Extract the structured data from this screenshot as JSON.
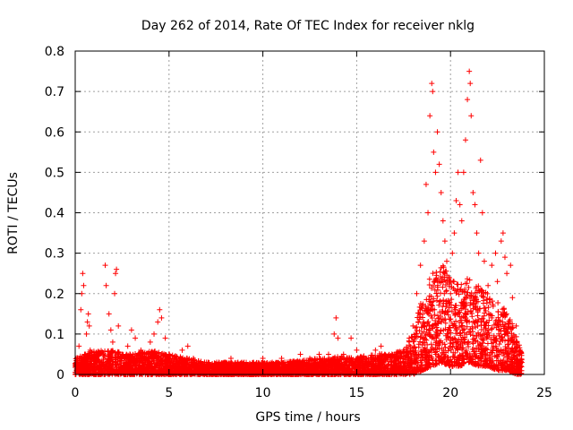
{
  "chart_data": {
    "type": "scatter",
    "title": "Day 262 of 2014, Rate Of TEC Index for receiver nklg",
    "xlabel": "GPS time / hours",
    "ylabel": "ROTI / TECUs",
    "xlim": [
      0,
      25
    ],
    "ylim": [
      0,
      0.8
    ],
    "x_ticks": [
      0,
      5,
      10,
      15,
      20,
      25
    ],
    "y_ticks": [
      0,
      0.1,
      0.2,
      0.3,
      0.4,
      0.5,
      0.6,
      0.7,
      0.8
    ],
    "x_tick_labels": [
      "0",
      "5",
      "10",
      "15",
      "20",
      "25"
    ],
    "y_tick_labels": [
      "0",
      "0.1",
      "0.2",
      "0.3",
      "0.4",
      "0.5",
      "0.6",
      "0.7",
      "0.8"
    ],
    "grid": true,
    "marker": "+",
    "marker_color": "#ff0000",
    "series": [
      {
        "name": "ROTI",
        "points": [
          [
            0.1,
            0.02
          ],
          [
            0.2,
            0.07
          ],
          [
            0.3,
            0.16
          ],
          [
            0.35,
            0.2
          ],
          [
            0.4,
            0.25
          ],
          [
            0.45,
            0.22
          ],
          [
            0.5,
            0.05
          ],
          [
            0.6,
            0.1
          ],
          [
            0.65,
            0.13
          ],
          [
            0.7,
            0.15
          ],
          [
            0.75,
            0.12
          ],
          [
            0.8,
            0.06
          ],
          [
            0.9,
            0.04
          ],
          [
            1.2,
            0.03
          ],
          [
            1.5,
            0.05
          ],
          [
            1.6,
            0.27
          ],
          [
            1.65,
            0.22
          ],
          [
            1.8,
            0.15
          ],
          [
            1.9,
            0.11
          ],
          [
            2.0,
            0.08
          ],
          [
            2.1,
            0.2
          ],
          [
            2.15,
            0.25
          ],
          [
            2.2,
            0.26
          ],
          [
            2.3,
            0.12
          ],
          [
            2.5,
            0.05
          ],
          [
            2.8,
            0.07
          ],
          [
            3.0,
            0.11
          ],
          [
            3.2,
            0.09
          ],
          [
            3.5,
            0.06
          ],
          [
            3.8,
            0.05
          ],
          [
            4.0,
            0.08
          ],
          [
            4.2,
            0.1
          ],
          [
            4.4,
            0.13
          ],
          [
            4.5,
            0.16
          ],
          [
            4.6,
            0.14
          ],
          [
            4.8,
            0.09
          ],
          [
            5.0,
            0.05
          ],
          [
            5.3,
            0.04
          ],
          [
            5.7,
            0.06
          ],
          [
            6.0,
            0.07
          ],
          [
            6.3,
            0.04
          ],
          [
            6.7,
            0.03
          ],
          [
            7.0,
            0.03
          ],
          [
            7.5,
            0.02
          ],
          [
            8.0,
            0.03
          ],
          [
            8.3,
            0.04
          ],
          [
            8.5,
            0.02
          ],
          [
            9.0,
            0.03
          ],
          [
            9.5,
            0.03
          ],
          [
            10.0,
            0.04
          ],
          [
            10.5,
            0.03
          ],
          [
            11.0,
            0.04
          ],
          [
            11.5,
            0.03
          ],
          [
            12.0,
            0.05
          ],
          [
            12.5,
            0.04
          ],
          [
            13.0,
            0.05
          ],
          [
            13.5,
            0.05
          ],
          [
            13.8,
            0.1
          ],
          [
            13.9,
            0.14
          ],
          [
            14.0,
            0.09
          ],
          [
            14.3,
            0.05
          ],
          [
            14.7,
            0.09
          ],
          [
            15.0,
            0.06
          ],
          [
            15.5,
            0.04
          ],
          [
            16.0,
            0.06
          ],
          [
            16.3,
            0.07
          ],
          [
            16.5,
            0.05
          ],
          [
            17.0,
            0.05
          ],
          [
            17.5,
            0.06
          ],
          [
            17.8,
            0.09
          ],
          [
            18.0,
            0.12
          ],
          [
            18.2,
            0.2
          ],
          [
            18.4,
            0.27
          ],
          [
            18.6,
            0.33
          ],
          [
            18.7,
            0.47
          ],
          [
            18.8,
            0.4
          ],
          [
            18.9,
            0.64
          ],
          [
            19.0,
            0.72
          ],
          [
            19.05,
            0.7
          ],
          [
            19.1,
            0.55
          ],
          [
            19.2,
            0.5
          ],
          [
            19.3,
            0.6
          ],
          [
            19.4,
            0.52
          ],
          [
            19.5,
            0.45
          ],
          [
            19.6,
            0.38
          ],
          [
            19.7,
            0.33
          ],
          [
            19.8,
            0.28
          ],
          [
            19.9,
            0.24
          ],
          [
            20.0,
            0.2
          ],
          [
            20.1,
            0.3
          ],
          [
            20.2,
            0.35
          ],
          [
            20.3,
            0.43
          ],
          [
            20.4,
            0.5
          ],
          [
            20.5,
            0.42
          ],
          [
            20.6,
            0.38
          ],
          [
            20.7,
            0.5
          ],
          [
            20.8,
            0.58
          ],
          [
            20.9,
            0.68
          ],
          [
            21.0,
            0.75
          ],
          [
            21.05,
            0.72
          ],
          [
            21.1,
            0.64
          ],
          [
            21.2,
            0.45
          ],
          [
            21.3,
            0.42
          ],
          [
            21.4,
            0.35
          ],
          [
            21.5,
            0.3
          ],
          [
            21.6,
            0.53
          ],
          [
            21.7,
            0.4
          ],
          [
            21.8,
            0.28
          ],
          [
            22.0,
            0.22
          ],
          [
            22.2,
            0.27
          ],
          [
            22.4,
            0.3
          ],
          [
            22.5,
            0.23
          ],
          [
            22.7,
            0.33
          ],
          [
            22.8,
            0.35
          ],
          [
            22.9,
            0.29
          ],
          [
            23.0,
            0.25
          ],
          [
            23.2,
            0.27
          ],
          [
            23.3,
            0.19
          ],
          [
            23.5,
            0.12
          ],
          [
            23.7,
            0.06
          ],
          [
            23.8,
            0.03
          ]
        ]
      }
    ],
    "envelope": {
      "description_points_x": [
        0,
        1,
        2,
        3,
        4,
        5,
        6,
        7,
        8,
        9,
        10,
        11,
        12,
        13,
        14,
        15,
        16,
        17,
        17.5,
        18,
        18.5,
        19,
        19.5,
        20,
        20.5,
        21,
        21.5,
        22,
        22.5,
        23,
        23.5,
        23.8
      ],
      "floor": [
        0.0,
        0.0,
        0.0,
        0.0,
        0.0,
        0.0,
        0.0,
        0.0,
        0.0,
        0.0,
        0.0,
        0.0,
        0.0,
        0.0,
        0.0,
        0.0,
        0.0,
        0.0,
        0.0,
        0.0,
        0.01,
        0.02,
        0.03,
        0.02,
        0.02,
        0.03,
        0.02,
        0.02,
        0.01,
        0.01,
        0.0,
        0.0
      ],
      "typical_top": [
        0.04,
        0.06,
        0.06,
        0.05,
        0.06,
        0.05,
        0.04,
        0.03,
        0.03,
        0.03,
        0.03,
        0.03,
        0.035,
        0.04,
        0.045,
        0.045,
        0.05,
        0.055,
        0.06,
        0.1,
        0.2,
        0.25,
        0.28,
        0.24,
        0.22,
        0.25,
        0.22,
        0.2,
        0.18,
        0.16,
        0.1,
        0.05
      ]
    }
  }
}
